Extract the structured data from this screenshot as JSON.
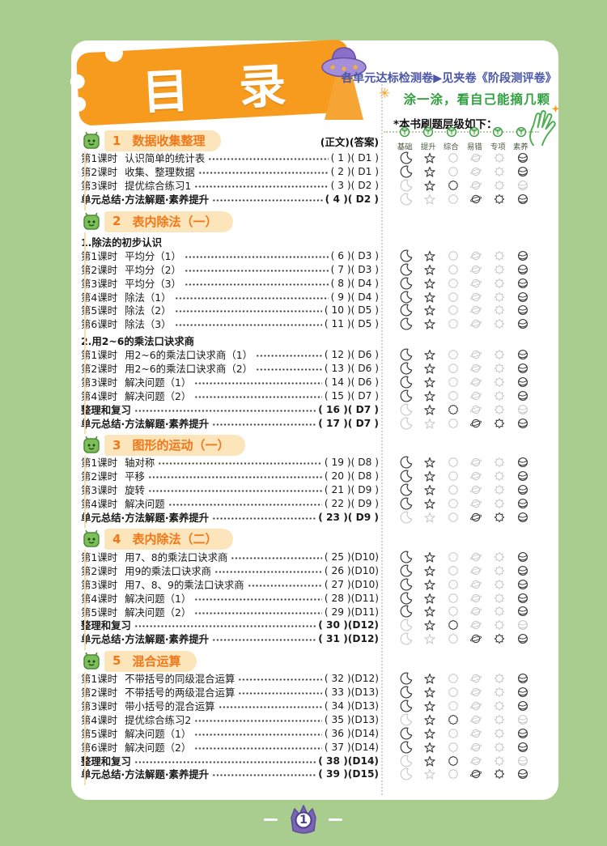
{
  "header": {
    "banner_title": "目录",
    "note_blue": "各单元达标检测卷▶见夹卷《阶段测评卷》",
    "note_green": "涂一涂，看自己能摘几颗",
    "levels_caption": "*本书刷题层级如下：",
    "levels": [
      "基础",
      "提升",
      "综合",
      "易错",
      "专项",
      "素养"
    ]
  },
  "icons": {
    "sparkle": "✳"
  },
  "level_icon_names": [
    "moon",
    "star",
    "sun",
    "planet",
    "burst",
    "ball"
  ],
  "footer": {
    "page_number": "1"
  },
  "colors": {
    "page_bg": "#A9CD8E",
    "card_bg": "#FFFFFF",
    "banner_orange": "#F69B1D",
    "section_banner_bg": "#FCE4BB",
    "section_title_orange": "#F07818",
    "note_blue": "#4C57A9",
    "note_green": "#2F9E3F",
    "level_dark": "#3C3C3C",
    "level_light": "#CBCBCB",
    "legend_green": "#3E9D44",
    "ufo_purple": "#8A6FC8",
    "beam_orange": "#F6A434",
    "badge_purple": "#7A64B4"
  },
  "sections": [
    {
      "number": "1",
      "title": "数据收集整理",
      "columns_caption": "(正文)(答案)",
      "rows": [
        {
          "label": "第1课时",
          "title": "认识简单的统计表",
          "page": "( 1 )",
          "answer": "( D1 )",
          "levels": [
            1,
            1,
            0,
            0,
            0,
            1
          ]
        },
        {
          "label": "第2课时",
          "title": "收集、整理数据",
          "page": "( 2 )",
          "answer": "( D1 )",
          "levels": [
            1,
            1,
            0,
            0,
            0,
            1
          ]
        },
        {
          "label": "第3课时",
          "title": "提优综合练习1",
          "page": "( 3 )",
          "answer": "( D2 )",
          "levels": [
            0,
            1,
            1,
            0,
            0,
            0
          ]
        },
        {
          "label": "",
          "title": "单元总结·方法解题·素养提升",
          "page": "( 4 )",
          "answer": "( D2 )",
          "bold": true,
          "levels": [
            0,
            0,
            0,
            1,
            1,
            1
          ]
        }
      ]
    },
    {
      "number": "2",
      "title": "表内除法（一）",
      "rows": [
        {
          "type": "subheading",
          "title": "1.除法的初步认识"
        },
        {
          "label": "第1课时",
          "title": "平均分（1）",
          "page": "( 6 )",
          "answer": "( D3 )",
          "levels": [
            1,
            1,
            0,
            0,
            0,
            1
          ]
        },
        {
          "label": "第2课时",
          "title": "平均分（2）",
          "page": "( 7 )",
          "answer": "( D3 )",
          "levels": [
            1,
            1,
            0,
            0,
            0,
            1
          ]
        },
        {
          "label": "第3课时",
          "title": "平均分（3）",
          "page": "( 8 )",
          "answer": "( D4 )",
          "levels": [
            1,
            1,
            0,
            0,
            0,
            1
          ]
        },
        {
          "label": "第4课时",
          "title": "除法（1）",
          "page": "( 9 )",
          "answer": "( D4 )",
          "levels": [
            1,
            1,
            0,
            0,
            0,
            1
          ]
        },
        {
          "label": "第5课时",
          "title": "除法（2）",
          "page": "( 10 )",
          "answer": "( D5 )",
          "levels": [
            1,
            1,
            0,
            0,
            0,
            1
          ]
        },
        {
          "label": "第6课时",
          "title": "除法（3）",
          "page": "( 11 )",
          "answer": "( D5 )",
          "levels": [
            1,
            1,
            0,
            0,
            0,
            1
          ]
        },
        {
          "type": "subheading",
          "title": "2.用2~6的乘法口诀求商"
        },
        {
          "label": "第1课时",
          "title": "用2~6的乘法口诀求商（1）",
          "page": "( 12 )",
          "answer": "( D6 )",
          "levels": [
            1,
            1,
            0,
            0,
            0,
            1
          ]
        },
        {
          "label": "第2课时",
          "title": "用2~6的乘法口诀求商（2）",
          "page": "( 13 )",
          "answer": "( D6 )",
          "levels": [
            1,
            1,
            0,
            0,
            0,
            1
          ]
        },
        {
          "label": "第3课时",
          "title": "解决问题（1）",
          "page": "( 14 )",
          "answer": "( D6 )",
          "levels": [
            1,
            1,
            0,
            0,
            0,
            1
          ]
        },
        {
          "label": "第4课时",
          "title": "解决问题（2）",
          "page": "( 15 )",
          "answer": "( D7 )",
          "levels": [
            1,
            1,
            0,
            0,
            0,
            1
          ]
        },
        {
          "label": "",
          "title": "整理和复习",
          "page": "( 16 )",
          "answer": "( D7 )",
          "bold": true,
          "levels": [
            0,
            1,
            1,
            0,
            0,
            0
          ]
        },
        {
          "label": "",
          "title": "单元总结·方法解题·素养提升",
          "page": "( 17 )",
          "answer": "( D7 )",
          "bold": true,
          "levels": [
            0,
            0,
            0,
            1,
            1,
            1
          ]
        }
      ]
    },
    {
      "number": "3",
      "title": "图形的运动（一）",
      "rows": [
        {
          "label": "第1课时",
          "title": "轴对称",
          "page": "( 19 )",
          "answer": "( D8 )",
          "levels": [
            1,
            1,
            0,
            0,
            0,
            1
          ]
        },
        {
          "label": "第2课时",
          "title": "平移",
          "page": "( 20 )",
          "answer": "( D8 )",
          "levels": [
            1,
            1,
            0,
            0,
            0,
            1
          ]
        },
        {
          "label": "第3课时",
          "title": "旋转",
          "page": "( 21 )",
          "answer": "( D9 )",
          "levels": [
            1,
            1,
            0,
            0,
            0,
            1
          ]
        },
        {
          "label": "第4课时",
          "title": "解决问题",
          "page": "( 22 )",
          "answer": "( D9 )",
          "levels": [
            1,
            1,
            0,
            0,
            0,
            1
          ]
        },
        {
          "label": "",
          "title": "单元总结·方法解题·素养提升",
          "page": "( 23 )",
          "answer": "( D9 )",
          "bold": true,
          "levels": [
            0,
            0,
            0,
            1,
            1,
            1
          ]
        }
      ]
    },
    {
      "number": "4",
      "title": "表内除法（二）",
      "rows": [
        {
          "label": "第1课时",
          "title": "用7、8的乘法口诀求商",
          "page": "( 25 )",
          "answer": "(D10)",
          "levels": [
            1,
            1,
            0,
            0,
            0,
            1
          ]
        },
        {
          "label": "第2课时",
          "title": "用9的乘法口诀求商",
          "page": "( 26 )",
          "answer": "(D10)",
          "levels": [
            1,
            1,
            0,
            0,
            0,
            1
          ]
        },
        {
          "label": "第3课时",
          "title": "用7、8、9的乘法口诀求商",
          "page": "( 27 )",
          "answer": "(D10)",
          "levels": [
            1,
            1,
            0,
            0,
            0,
            1
          ]
        },
        {
          "label": "第4课时",
          "title": "解决问题（1）",
          "page": "( 28 )",
          "answer": "(D11)",
          "levels": [
            1,
            1,
            0,
            0,
            0,
            1
          ]
        },
        {
          "label": "第5课时",
          "title": "解决问题（2）",
          "page": "( 29 )",
          "answer": "(D11)",
          "levels": [
            1,
            1,
            0,
            0,
            0,
            1
          ]
        },
        {
          "label": "",
          "title": "整理和复习",
          "page": "( 30 )",
          "answer": "(D12)",
          "bold": true,
          "levels": [
            0,
            1,
            1,
            0,
            0,
            0
          ]
        },
        {
          "label": "",
          "title": "单元总结·方法解题·素养提升",
          "page": "( 31 )",
          "answer": "(D12)",
          "bold": true,
          "levels": [
            0,
            0,
            0,
            1,
            1,
            1
          ]
        }
      ]
    },
    {
      "number": "5",
      "title": "混合运算",
      "rows": [
        {
          "label": "第1课时",
          "title": "不带括号的同级混合运算",
          "page": "( 32 )",
          "answer": "(D12)",
          "levels": [
            1,
            1,
            0,
            0,
            0,
            1
          ]
        },
        {
          "label": "第2课时",
          "title": "不带括号的两级混合运算",
          "page": "( 33 )",
          "answer": "(D13)",
          "levels": [
            1,
            1,
            0,
            0,
            0,
            1
          ]
        },
        {
          "label": "第3课时",
          "title": "带小括号的混合运算",
          "page": "( 34 )",
          "answer": "(D13)",
          "levels": [
            1,
            1,
            0,
            0,
            0,
            1
          ]
        },
        {
          "label": "第4课时",
          "title": "提优综合练习2",
          "page": "( 35 )",
          "answer": "(D13)",
          "levels": [
            0,
            1,
            1,
            0,
            0,
            0
          ]
        },
        {
          "label": "第5课时",
          "title": "解决问题（1）",
          "page": "( 36 )",
          "answer": "(D14)",
          "levels": [
            1,
            1,
            0,
            0,
            0,
            1
          ]
        },
        {
          "label": "第6课时",
          "title": "解决问题（2）",
          "page": "( 37 )",
          "answer": "(D14)",
          "levels": [
            1,
            1,
            0,
            0,
            0,
            1
          ]
        },
        {
          "label": "",
          "title": "整理和复习",
          "page": "( 38 )",
          "answer": "(D14)",
          "bold": true,
          "levels": [
            0,
            1,
            1,
            0,
            0,
            0
          ]
        },
        {
          "label": "",
          "title": "单元总结·方法解题·素养提升",
          "page": "( 39 )",
          "answer": "(D15)",
          "bold": true,
          "levels": [
            0,
            0,
            0,
            1,
            1,
            1
          ]
        }
      ]
    }
  ]
}
